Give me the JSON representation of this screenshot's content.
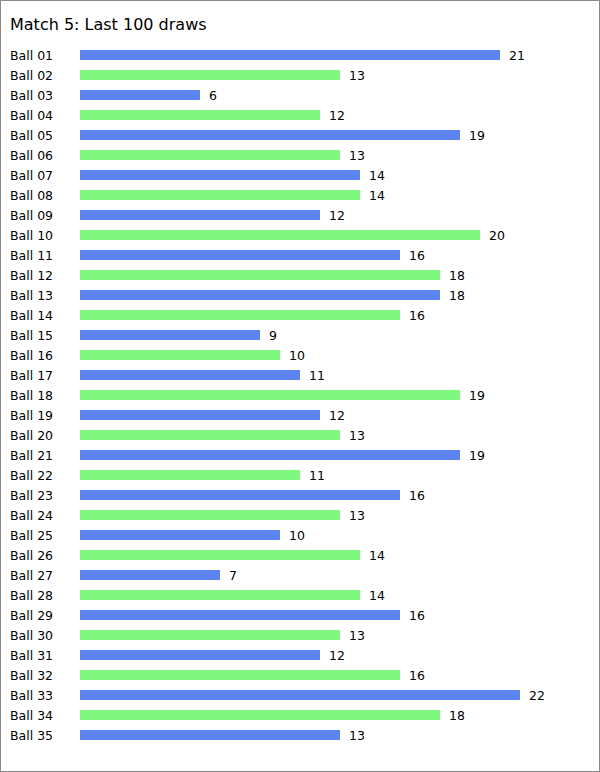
{
  "chart_data": {
    "type": "bar",
    "orientation": "horizontal",
    "title": "Match 5: Last 100 draws",
    "categories": [
      "Ball 01",
      "Ball 02",
      "Ball 03",
      "Ball 04",
      "Ball 05",
      "Ball 06",
      "Ball 07",
      "Ball 08",
      "Ball 09",
      "Ball 10",
      "Ball 11",
      "Ball 12",
      "Ball 13",
      "Ball 14",
      "Ball 15",
      "Ball 16",
      "Ball 17",
      "Ball 18",
      "Ball 19",
      "Ball 20",
      "Ball 21",
      "Ball 22",
      "Ball 23",
      "Ball 24",
      "Ball 25",
      "Ball 26",
      "Ball 27",
      "Ball 28",
      "Ball 29",
      "Ball 30",
      "Ball 31",
      "Ball 32",
      "Ball 33",
      "Ball 34",
      "Ball 35"
    ],
    "values": [
      21,
      13,
      6,
      12,
      19,
      13,
      14,
      14,
      12,
      20,
      16,
      18,
      18,
      16,
      9,
      10,
      11,
      19,
      12,
      13,
      19,
      11,
      16,
      13,
      10,
      14,
      7,
      14,
      16,
      13,
      12,
      16,
      22,
      18,
      13
    ],
    "colors": [
      "#5b84f0",
      "#80f880",
      "#5b84f0",
      "#80f880",
      "#5b84f0",
      "#80f880",
      "#5b84f0",
      "#80f880",
      "#5b84f0",
      "#80f880",
      "#5b84f0",
      "#80f880",
      "#5b84f0",
      "#80f880",
      "#5b84f0",
      "#80f880",
      "#5b84f0",
      "#80f880",
      "#5b84f0",
      "#80f880",
      "#5b84f0",
      "#80f880",
      "#5b84f0",
      "#80f880",
      "#5b84f0",
      "#80f880",
      "#5b84f0",
      "#80f880",
      "#5b84f0",
      "#80f880",
      "#5b84f0",
      "#80f880",
      "#5b84f0",
      "#80f880",
      "#5b84f0"
    ],
    "xlim": [
      0,
      25
    ],
    "data_labels": true,
    "tick_labels": "y",
    "grid": false
  }
}
